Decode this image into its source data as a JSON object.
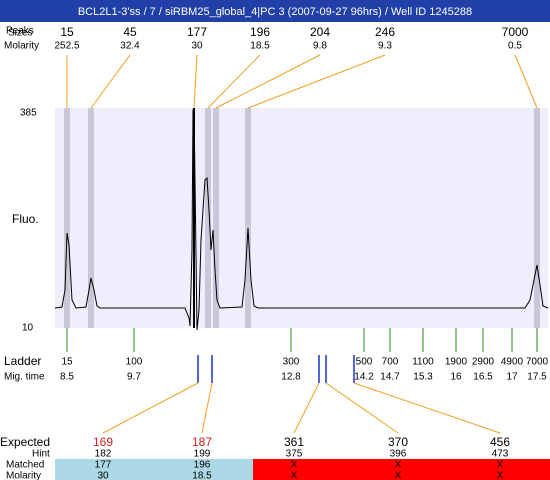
{
  "title": "BCL2L1-3'ss / 7 / siRBM25_global_4|PC 3 (2007-09-27 96hrs) / Well ID 1245288",
  "row_labels": {
    "peaks": "Peaks",
    "sizes": "Sizes",
    "molarity": "Molarity"
  },
  "y_axis": {
    "top": "385",
    "bottom": "10",
    "label": "Fluo."
  },
  "peaks": [
    {
      "size": "15",
      "molarity": "252.5"
    },
    {
      "size": "45",
      "molarity": "32.4"
    },
    {
      "size": "177",
      "molarity": "30"
    },
    {
      "size": "196",
      "molarity": "18.5"
    },
    {
      "size": "204",
      "molarity": "9.8"
    },
    {
      "size": "246",
      "molarity": "9.3"
    },
    {
      "size": "7000",
      "molarity": "0.5"
    }
  ],
  "ladder": {
    "label": "Ladder",
    "mig_label": "Mig. time",
    "sizes": [
      "15",
      "100",
      "300",
      "500",
      "700",
      "1100",
      "1900",
      "2900",
      "4900",
      "7000"
    ],
    "mig_times": [
      "8.5",
      "9.7",
      "12.8",
      "14.2",
      "14.7",
      "15.3",
      "16",
      "16.5",
      "17",
      "17.5"
    ]
  },
  "expected": {
    "labels": {
      "expected": "Expected",
      "hint": "Hint",
      "matched": "Matched",
      "molarity": "Molarity"
    },
    "items": [
      {
        "expected": "169",
        "hint": "182",
        "matched": "177",
        "molarity": "30",
        "color": "#e02020",
        "row_color": "#add8e6"
      },
      {
        "expected": "187",
        "hint": "199",
        "matched": "196",
        "molarity": "18.5",
        "color": "#e02020",
        "row_color": "#add8e6"
      },
      {
        "expected": "361",
        "hint": "375",
        "matched": "X",
        "molarity": "X",
        "color": "#000000",
        "row_color": "#ff0000"
      },
      {
        "expected": "370",
        "hint": "396",
        "matched": "X",
        "molarity": "X",
        "color": "#000000",
        "row_color": "#ff0000"
      },
      {
        "expected": "456",
        "hint": "473",
        "matched": "X",
        "molarity": "X",
        "color": "#000000",
        "row_color": "#ff0000"
      }
    ]
  }
}
